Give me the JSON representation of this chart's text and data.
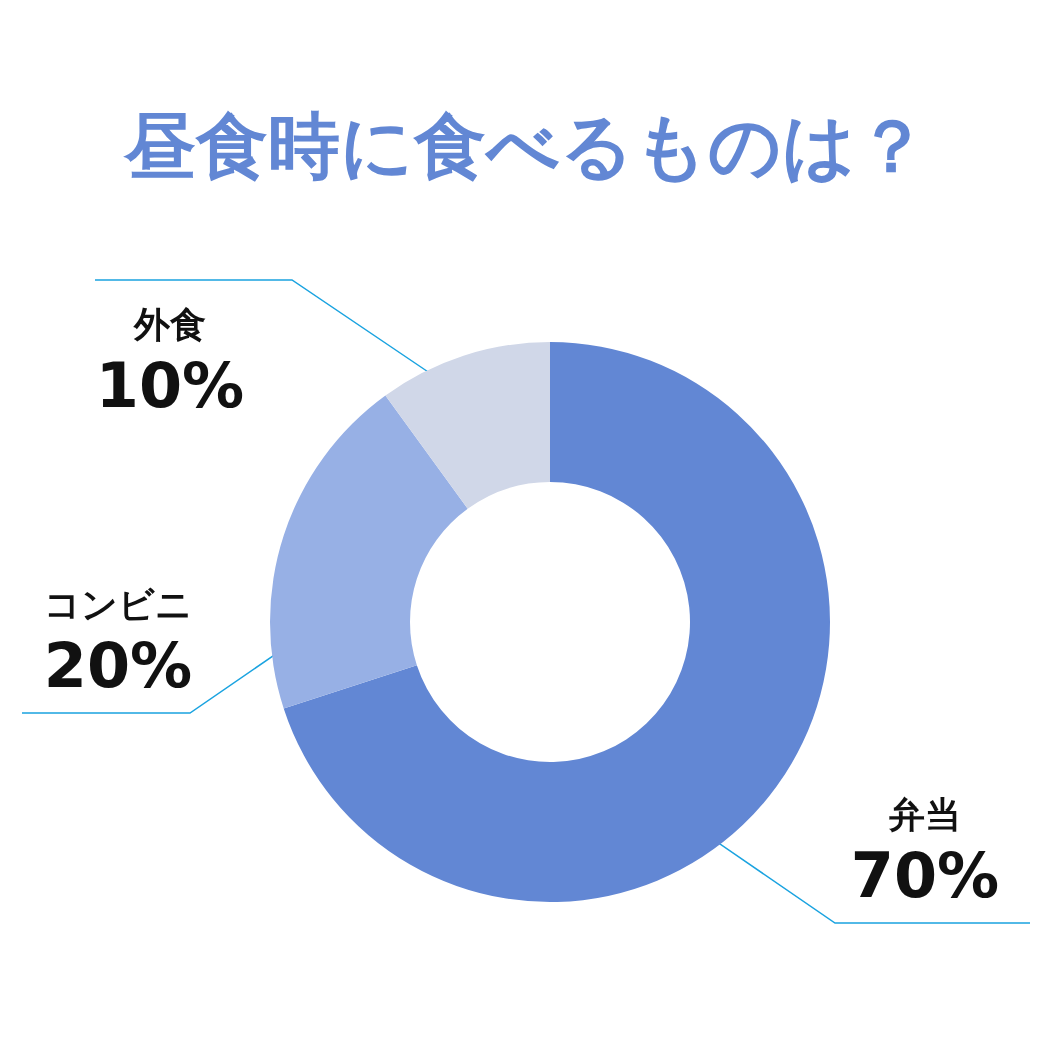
{
  "chart_data": {
    "type": "donut",
    "title": "昼食時に食べるものは？",
    "categories": [
      "弁当",
      "コンビニ",
      "外食"
    ],
    "values": [
      70,
      20,
      10
    ],
    "value_labels": [
      "70%",
      "20%",
      "10%"
    ],
    "colors": [
      "#6287d4",
      "#97b0e5",
      "#d0d7e8"
    ],
    "legend": false
  }
}
